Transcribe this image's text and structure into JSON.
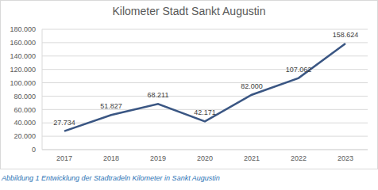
{
  "chart_data": {
    "type": "line",
    "title": "Kilometer Stadt Sankt Augustin",
    "caption": "Abbildung 1 Entwicklung der Stadtradeln Kilometer in Sankt Augustin",
    "categories": [
      "2017",
      "2018",
      "2019",
      "2020",
      "2021",
      "2022",
      "2023"
    ],
    "values": [
      27734,
      51827,
      68211,
      42171,
      82000,
      107062,
      158624
    ],
    "value_labels": [
      "27.734",
      "51.827",
      "68.211",
      "42.171",
      "82.000",
      "107.062",
      "158.624"
    ],
    "data_labels": true,
    "color": "#3a5683",
    "ylim": [
      0,
      180000
    ],
    "yticks": [
      0,
      {
        "value": 20000,
        "label": "20.000"
      },
      {
        "value": 40000,
        "label": "40.000"
      },
      {
        "value": 60000,
        "label": "60.000"
      },
      {
        "value": 80000,
        "label": "80.000"
      },
      {
        "value": 100000,
        "label": "100.000"
      },
      {
        "value": 120000,
        "label": "120.000"
      },
      {
        "value": 140000,
        "label": "140.000"
      },
      {
        "value": 160000,
        "label": "160.000"
      },
      {
        "value": 180000,
        "label": "180.000"
      }
    ],
    "grid": true
  }
}
